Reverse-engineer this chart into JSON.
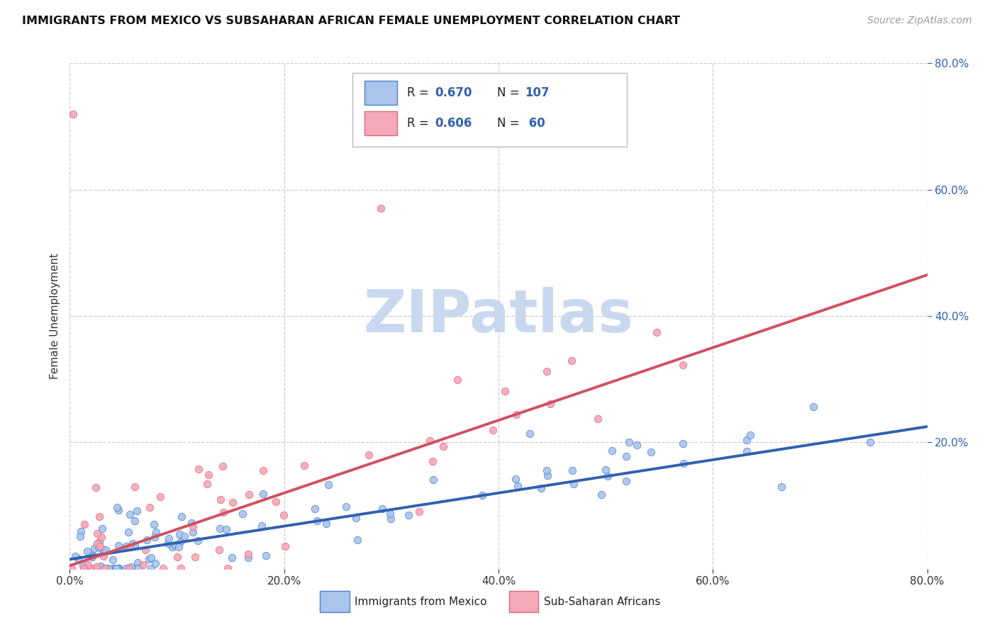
{
  "title": "IMMIGRANTS FROM MEXICO VS SUBSAHARAN AFRICAN FEMALE UNEMPLOYMENT CORRELATION CHART",
  "source": "Source: ZipAtlas.com",
  "ylabel": "Female Unemployment",
  "xlim": [
    0.0,
    0.8
  ],
  "ylim": [
    0.0,
    0.8
  ],
  "xtick_labels": [
    "0.0%",
    "20.0%",
    "40.0%",
    "60.0%",
    "80.0%"
  ],
  "xtick_vals": [
    0.0,
    0.2,
    0.4,
    0.6,
    0.8
  ],
  "ytick_labels": [
    "80.0%",
    "60.0%",
    "40.0%",
    "20.0%"
  ],
  "ytick_vals": [
    0.8,
    0.6,
    0.4,
    0.2
  ],
  "legend_labels": [
    "Immigrants from Mexico",
    "Sub-Saharan Africans"
  ],
  "blue_color": "#aac4ea",
  "pink_color": "#f4a8b8",
  "blue_edge_color": "#4a7fd4",
  "pink_edge_color": "#e06878",
  "blue_line_color": "#3060b0",
  "pink_line_color": "#d05060",
  "watermark_color": "#c8d8ee",
  "background_color": "#ffffff",
  "grid_color": "#cccccc",
  "blue_line_y_start": 0.015,
  "blue_line_y_end": 0.225,
  "pink_line_y_start": 0.005,
  "pink_line_y_end": 0.465
}
